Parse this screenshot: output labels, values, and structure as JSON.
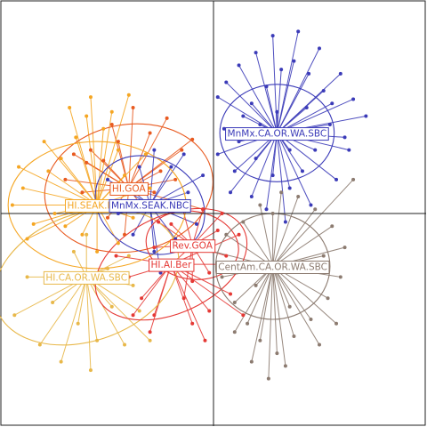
{
  "chart_data": {
    "type": "scatter",
    "title": "",
    "xlabel": "",
    "ylabel": "",
    "grid": false,
    "axes_lines": "cross at origin",
    "xlim": [
      -1.0,
      1.0
    ],
    "ylim": [
      -1.0,
      1.0
    ],
    "series": [
      {
        "name": "HI.GOA",
        "color": "#e85a20",
        "centroid": [
          -0.4,
          0.12
        ],
        "ellipse": {
          "rx": 0.4,
          "ry": 0.3,
          "angle_deg": -10
        },
        "points": [
          [
            -0.58,
            0.3
          ],
          [
            -0.52,
            0.25
          ],
          [
            -0.45,
            0.34
          ],
          [
            -0.3,
            0.38
          ],
          [
            -0.22,
            0.45
          ],
          [
            -0.62,
            0.1
          ],
          [
            -0.7,
            0.16
          ],
          [
            -0.5,
            -0.02
          ],
          [
            -0.35,
            0.05
          ],
          [
            -0.25,
            0.2
          ],
          [
            -0.15,
            0.3
          ],
          [
            -0.05,
            0.02
          ],
          [
            -0.42,
            -0.1
          ],
          [
            -0.6,
            0.24
          ],
          [
            -0.28,
            0.1
          ],
          [
            -0.18,
            0.16
          ],
          [
            -0.1,
            0.35
          ],
          [
            -0.48,
            0.42
          ],
          [
            -0.66,
            0.28
          ],
          [
            -0.38,
            0.5
          ]
        ]
      },
      {
        "name": "HI.SEAK.NBC",
        "color": "#f5a623",
        "centroid": [
          -0.55,
          0.04
        ],
        "ellipse": {
          "rx": 0.42,
          "ry": 0.3,
          "angle_deg": 0
        },
        "points": [
          [
            -0.9,
            0.12
          ],
          [
            -0.95,
            0.04
          ],
          [
            -0.85,
            -0.05
          ],
          [
            -0.78,
            0.2
          ],
          [
            -0.72,
            0.26
          ],
          [
            -0.8,
            0.34
          ],
          [
            -0.65,
            0.36
          ],
          [
            -0.6,
            0.46
          ],
          [
            -0.52,
            0.4
          ],
          [
            -0.45,
            0.3
          ],
          [
            -0.42,
            0.18
          ],
          [
            -0.38,
            -0.02
          ],
          [
            -0.45,
            -0.14
          ],
          [
            -0.55,
            -0.18
          ],
          [
            -0.62,
            -0.1
          ],
          [
            -0.7,
            -0.06
          ],
          [
            -0.88,
            -0.12
          ],
          [
            -0.75,
            0.0
          ],
          [
            -0.32,
            0.28
          ],
          [
            -0.48,
            0.48
          ],
          [
            -0.58,
            0.55
          ],
          [
            -0.68,
            0.5
          ],
          [
            -0.92,
            0.22
          ],
          [
            -0.3,
            0.12
          ],
          [
            -0.4,
            0.56
          ]
        ]
      },
      {
        "name": "HI.CA.OR.WA.SBC",
        "color": "#e8b84a",
        "centroid": [
          -0.6,
          -0.3
        ],
        "ellipse": {
          "rx": 0.45,
          "ry": 0.3,
          "angle_deg": -20
        },
        "points": [
          [
            -0.82,
            -0.62
          ],
          [
            -0.76,
            -0.42
          ],
          [
            -0.7,
            -0.3
          ],
          [
            -0.64,
            -0.52
          ],
          [
            -0.55,
            -0.6
          ],
          [
            -0.48,
            -0.44
          ],
          [
            -0.4,
            -0.2
          ],
          [
            -0.35,
            -0.46
          ],
          [
            -0.3,
            -0.6
          ],
          [
            -0.88,
            -0.3
          ],
          [
            -0.6,
            -0.1
          ],
          [
            -0.5,
            -0.26
          ],
          [
            -0.72,
            -0.7
          ],
          [
            -0.42,
            -0.62
          ],
          [
            -0.58,
            -0.74
          ],
          [
            -0.94,
            -0.48
          ],
          [
            -0.66,
            -0.18
          ],
          [
            -0.38,
            -0.34
          ]
        ]
      },
      {
        "name": "MnMx.SEAK.NBC",
        "color": "#3b3bb8",
        "centroid": [
          -0.3,
          0.04
        ],
        "ellipse": {
          "rx": 0.27,
          "ry": 0.22,
          "angle_deg": 30
        },
        "points": [
          [
            -0.35,
            0.22
          ],
          [
            -0.28,
            0.3
          ],
          [
            -0.2,
            0.22
          ],
          [
            -0.12,
            0.1
          ],
          [
            -0.08,
            -0.05
          ],
          [
            -0.18,
            -0.12
          ],
          [
            -0.28,
            -0.18
          ],
          [
            -0.38,
            -0.1
          ],
          [
            -0.45,
            0.0
          ],
          [
            -0.4,
            0.12
          ],
          [
            -0.25,
            -0.28
          ],
          [
            -0.14,
            0.28
          ],
          [
            -0.5,
            0.16
          ],
          [
            -0.05,
            0.18
          ]
        ]
      },
      {
        "name": "MnMx.CA.OR.WA.SBC",
        "color": "#3b3bb8",
        "centroid": [
          0.3,
          0.38
        ],
        "ellipse": {
          "rx": 0.27,
          "ry": 0.23,
          "angle_deg": 0
        },
        "points": [
          [
            0.02,
            0.55
          ],
          [
            0.06,
            0.62
          ],
          [
            0.12,
            0.7
          ],
          [
            0.18,
            0.52
          ],
          [
            0.25,
            0.6
          ],
          [
            0.32,
            0.68
          ],
          [
            0.38,
            0.72
          ],
          [
            0.45,
            0.66
          ],
          [
            0.52,
            0.58
          ],
          [
            0.6,
            0.66
          ],
          [
            0.66,
            0.54
          ],
          [
            0.72,
            0.46
          ],
          [
            0.55,
            0.42
          ],
          [
            0.48,
            0.3
          ],
          [
            0.42,
            0.2
          ],
          [
            0.36,
            0.12
          ],
          [
            0.28,
            0.18
          ],
          [
            0.2,
            0.26
          ],
          [
            0.12,
            0.34
          ],
          [
            0.05,
            0.4
          ],
          [
            0.1,
            0.2
          ],
          [
            0.18,
            0.08
          ],
          [
            0.25,
            0.02
          ],
          [
            0.34,
            -0.04
          ],
          [
            0.46,
            0.04
          ],
          [
            0.58,
            0.16
          ],
          [
            0.64,
            0.3
          ],
          [
            0.02,
            0.28
          ],
          [
            0.28,
            0.84
          ],
          [
            0.4,
            0.86
          ],
          [
            0.2,
            0.76
          ],
          [
            0.5,
            0.78
          ],
          [
            0.14,
            0.46
          ],
          [
            0.56,
            0.52
          ],
          [
            0.08,
            0.1
          ],
          [
            0.62,
            0.36
          ],
          [
            0.3,
            0.48
          ],
          [
            0.44,
            0.5
          ],
          [
            0.22,
            0.42
          ],
          [
            0.36,
            0.3
          ]
        ]
      },
      {
        "name": "Rev.GOA",
        "color": "#e53935",
        "centroid": [
          -0.1,
          -0.15
        ],
        "ellipse": {
          "rx": 0.22,
          "ry": 0.16,
          "angle_deg": 10
        },
        "points": [
          [
            -0.2,
            -0.05
          ],
          [
            -0.15,
            0.04
          ],
          [
            -0.05,
            0.02
          ],
          [
            0.02,
            -0.08
          ],
          [
            0.06,
            -0.2
          ],
          [
            -0.02,
            -0.28
          ],
          [
            -0.1,
            -0.32
          ],
          [
            -0.22,
            -0.26
          ],
          [
            -0.28,
            -0.16
          ],
          [
            -0.26,
            -0.04
          ],
          [
            0.04,
            0.0
          ],
          [
            -0.14,
            -0.4
          ]
        ]
      },
      {
        "name": "HI.Al.Ber",
        "color": "#e53935",
        "centroid": [
          -0.2,
          -0.24
        ],
        "ellipse": {
          "rx": 0.38,
          "ry": 0.23,
          "angle_deg": -25
        },
        "points": [
          [
            -0.34,
            -0.4
          ],
          [
            -0.28,
            -0.48
          ],
          [
            -0.1,
            -0.52
          ],
          [
            -0.02,
            -0.46
          ],
          [
            0.08,
            -0.38
          ],
          [
            0.1,
            -0.24
          ],
          [
            -0.4,
            -0.3
          ],
          [
            -0.46,
            -0.2
          ],
          [
            -0.3,
            -0.56
          ],
          [
            -0.04,
            -0.6
          ],
          [
            0.14,
            -0.48
          ],
          [
            -0.38,
            -0.48
          ],
          [
            0.12,
            -0.1
          ]
        ]
      },
      {
        "name": "CentAm.CA.OR.WA.SBC",
        "color": "#8c7b70",
        "centroid": [
          0.28,
          -0.25
        ],
        "ellipse": {
          "rx": 0.27,
          "ry": 0.25,
          "angle_deg": 0
        },
        "points": [
          [
            0.0,
            -0.18
          ],
          [
            0.04,
            -0.3
          ],
          [
            0.1,
            -0.42
          ],
          [
            0.16,
            -0.52
          ],
          [
            0.22,
            -0.6
          ],
          [
            0.3,
            -0.66
          ],
          [
            0.38,
            -0.58
          ],
          [
            0.46,
            -0.5
          ],
          [
            0.54,
            -0.4
          ],
          [
            0.6,
            -0.3
          ],
          [
            0.62,
            -0.16
          ],
          [
            0.56,
            -0.06
          ],
          [
            0.48,
            0.02
          ],
          [
            0.4,
            0.08
          ],
          [
            0.32,
            0.1
          ],
          [
            0.22,
            0.04
          ],
          [
            0.14,
            -0.04
          ],
          [
            0.06,
            -0.1
          ],
          [
            0.66,
            0.16
          ],
          [
            0.34,
            -0.72
          ],
          [
            0.26,
            -0.78
          ],
          [
            0.18,
            -0.7
          ],
          [
            0.5,
            -0.62
          ],
          [
            0.58,
            -0.52
          ],
          [
            0.1,
            -0.56
          ],
          [
            0.42,
            -0.26
          ],
          [
            0.2,
            -0.34
          ],
          [
            0.36,
            -0.44
          ],
          [
            0.52,
            -0.2
          ],
          [
            0.28,
            0.0
          ]
        ]
      }
    ]
  }
}
